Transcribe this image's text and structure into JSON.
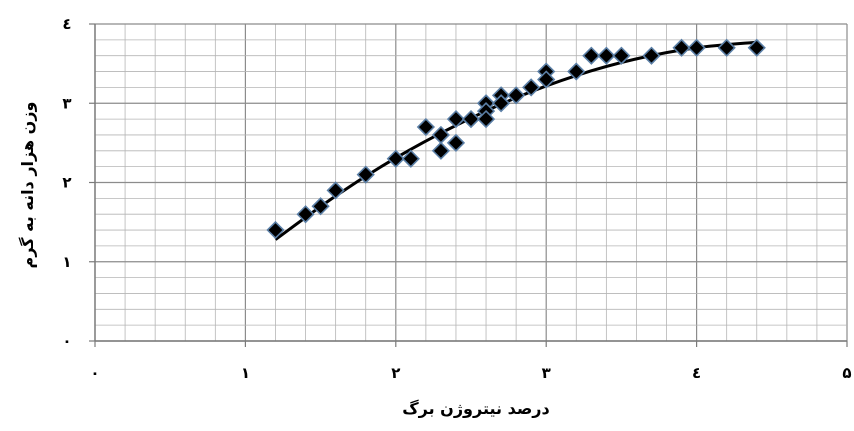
{
  "chart_data": {
    "type": "scatter",
    "xlabel": "درصد نیتروژن برگ",
    "ylabel": "وزن  هزار دانه به گرم",
    "xlim": [
      0,
      5
    ],
    "ylim": [
      0,
      4
    ],
    "x_ticks": [
      {
        "value": 0,
        "label": "۰"
      },
      {
        "value": 1,
        "label": "۱"
      },
      {
        "value": 2,
        "label": "۲"
      },
      {
        "value": 3,
        "label": "۳"
      },
      {
        "value": 4,
        "label": "٤"
      },
      {
        "value": 5,
        "label": "۵"
      }
    ],
    "y_ticks": [
      {
        "value": 0,
        "label": "۰"
      },
      {
        "value": 1,
        "label": "۱"
      },
      {
        "value": 2,
        "label": "۲"
      },
      {
        "value": 3,
        "label": "۳"
      },
      {
        "value": 4,
        "label": "٤"
      }
    ],
    "grid": true,
    "minor_grid": true,
    "marker": "diamond",
    "marker_color": "#000000",
    "marker_edge_color": "#5b7fa6",
    "trendline": "quadratic",
    "trendline_color": "#000000",
    "points": [
      {
        "x": 1.2,
        "y": 1.4
      },
      {
        "x": 1.4,
        "y": 1.6
      },
      {
        "x": 1.5,
        "y": 1.7
      },
      {
        "x": 1.6,
        "y": 1.9
      },
      {
        "x": 1.8,
        "y": 2.1
      },
      {
        "x": 2.0,
        "y": 2.3
      },
      {
        "x": 2.1,
        "y": 2.3
      },
      {
        "x": 2.2,
        "y": 2.7
      },
      {
        "x": 2.3,
        "y": 2.6
      },
      {
        "x": 2.3,
        "y": 2.4
      },
      {
        "x": 2.4,
        "y": 2.8
      },
      {
        "x": 2.4,
        "y": 2.5
      },
      {
        "x": 2.5,
        "y": 2.8
      },
      {
        "x": 2.6,
        "y": 3.0
      },
      {
        "x": 2.6,
        "y": 2.9
      },
      {
        "x": 2.6,
        "y": 2.8
      },
      {
        "x": 2.7,
        "y": 3.1
      },
      {
        "x": 2.7,
        "y": 3.0
      },
      {
        "x": 2.8,
        "y": 3.1
      },
      {
        "x": 2.9,
        "y": 3.2
      },
      {
        "x": 3.0,
        "y": 3.4
      },
      {
        "x": 3.0,
        "y": 3.3
      },
      {
        "x": 3.2,
        "y": 3.4
      },
      {
        "x": 3.3,
        "y": 3.6
      },
      {
        "x": 3.4,
        "y": 3.6
      },
      {
        "x": 3.5,
        "y": 3.6
      },
      {
        "x": 3.7,
        "y": 3.6
      },
      {
        "x": 3.9,
        "y": 3.7
      },
      {
        "x": 4.0,
        "y": 3.7
      },
      {
        "x": 4.2,
        "y": 3.7
      },
      {
        "x": 4.4,
        "y": 3.7
      }
    ],
    "trend_curve": [
      {
        "x": 1.2,
        "y": 1.28
      },
      {
        "x": 1.6,
        "y": 1.83
      },
      {
        "x": 2.0,
        "y": 2.31
      },
      {
        "x": 2.4,
        "y": 2.72
      },
      {
        "x": 2.8,
        "y": 3.07
      },
      {
        "x": 3.2,
        "y": 3.35
      },
      {
        "x": 3.6,
        "y": 3.56
      },
      {
        "x": 4.0,
        "y": 3.7
      },
      {
        "x": 4.4,
        "y": 3.77
      }
    ]
  }
}
